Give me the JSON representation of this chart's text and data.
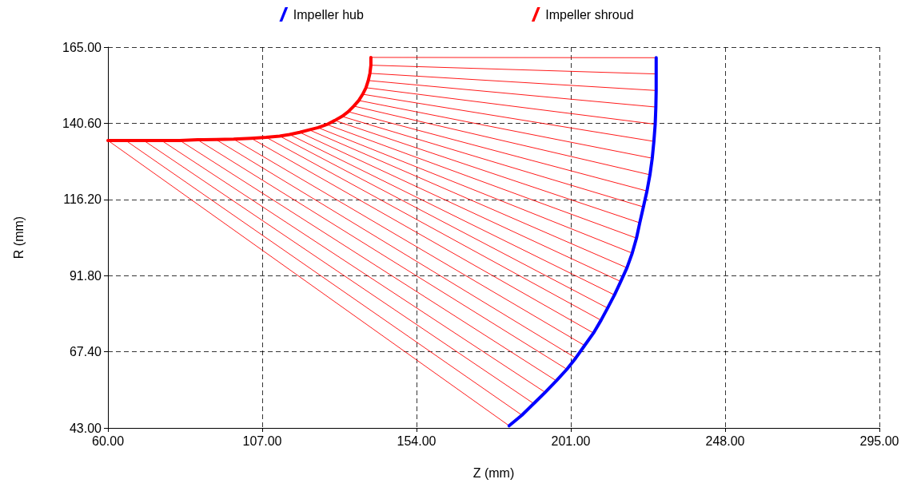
{
  "chart_data": {
    "type": "line",
    "xlabel": "Z (mm)",
    "ylabel": "R (mm)",
    "xlim": [
      60,
      295
    ],
    "ylim": [
      43,
      165
    ],
    "xticks": [
      {
        "value": 60,
        "label": "60.00"
      },
      {
        "value": 107,
        "label": "107.00"
      },
      {
        "value": 154,
        "label": "154.00"
      },
      {
        "value": 201,
        "label": "201.00"
      },
      {
        "value": 248,
        "label": "248.00"
      },
      {
        "value": 295,
        "label": "295.00"
      }
    ],
    "yticks": [
      {
        "value": 43,
        "label": "43.00"
      },
      {
        "value": 67.4,
        "label": "67.40"
      },
      {
        "value": 91.8,
        "label": "91.80"
      },
      {
        "value": 116.2,
        "label": "116.20"
      },
      {
        "value": 140.6,
        "label": "140.60"
      },
      {
        "value": 165,
        "label": "165.00"
      }
    ],
    "grid": true,
    "legend": "top",
    "marker": "none",
    "line_style": "solid",
    "series": [
      {
        "name": "Impeller hub",
        "color": "#0000ff",
        "x": [
          182.2,
          186.1,
          189.7,
          193.2,
          196.6,
          199.8,
          202.5,
          205.2,
          207.9,
          210.2,
          212.2,
          214.3,
          216.2,
          218.1,
          219.7,
          221.0,
          222.0,
          223.1,
          224.2,
          225.1,
          225.8,
          226.3,
          226.7,
          226.9,
          227.0,
          227.0,
          227.0
        ],
        "values": [
          43.7,
          47.1,
          50.8,
          54.4,
          58.1,
          61.8,
          65.4,
          69.4,
          73.4,
          77.5,
          81.4,
          85.6,
          89.9,
          94.3,
          99.0,
          103.8,
          108.7,
          113.8,
          118.9,
          124.1,
          129.4,
          134.8,
          140.3,
          145.8,
          151.1,
          156.4,
          161.6
        ]
      },
      {
        "name": "Impeller shroud",
        "color": "#ff0000",
        "x": [
          60.0,
          65.4,
          70.9,
          76.3,
          81.9,
          87.3,
          92.9,
          98.3,
          103.6,
          108.2,
          112.3,
          115.3,
          118.4,
          121.3,
          124.0,
          126.7,
          129.1,
          131.3,
          133.2,
          134.9,
          136.4,
          137.6,
          138.6,
          139.3,
          139.8,
          140.1,
          140.1
        ],
        "values": [
          135.1,
          135.1,
          135.1,
          135.1,
          135.1,
          135.3,
          135.4,
          135.5,
          135.8,
          136.1,
          136.5,
          137.0,
          137.7,
          138.5,
          139.2,
          140.2,
          141.5,
          142.8,
          144.3,
          146.1,
          147.9,
          149.9,
          152.0,
          154.3,
          156.6,
          159.2,
          161.7
        ]
      },
      {
        "color": "#ff0000",
        "x": [
          140.1,
          227.0
        ],
        "values": [
          161.7,
          161.6
        ]
      },
      {
        "color": "#ff0000",
        "x": [
          140.1,
          227.0
        ],
        "values": [
          159.2,
          156.4
        ]
      },
      {
        "color": "#ff0000",
        "x": [
          139.8,
          227.0
        ],
        "values": [
          156.6,
          151.1
        ]
      },
      {
        "color": "#ff0000",
        "x": [
          139.3,
          226.9
        ],
        "values": [
          154.3,
          145.8
        ]
      },
      {
        "color": "#ff0000",
        "x": [
          138.6,
          226.7
        ],
        "values": [
          152.0,
          140.3
        ]
      },
      {
        "color": "#ff0000",
        "x": [
          137.6,
          226.3
        ],
        "values": [
          149.9,
          134.8
        ]
      },
      {
        "color": "#ff0000",
        "x": [
          136.4,
          225.8
        ],
        "values": [
          147.9,
          129.4
        ]
      },
      {
        "color": "#ff0000",
        "x": [
          134.9,
          225.1
        ],
        "values": [
          146.1,
          124.1
        ]
      },
      {
        "color": "#ff0000",
        "x": [
          133.2,
          224.2
        ],
        "values": [
          144.3,
          118.9
        ]
      },
      {
        "color": "#ff0000",
        "x": [
          131.3,
          223.1
        ],
        "values": [
          142.8,
          113.8
        ]
      },
      {
        "color": "#ff0000",
        "x": [
          129.1,
          222.0
        ],
        "values": [
          141.5,
          108.7
        ]
      },
      {
        "color": "#ff0000",
        "x": [
          126.7,
          221.0
        ],
        "values": [
          140.2,
          103.8
        ]
      },
      {
        "color": "#ff0000",
        "x": [
          124.0,
          219.7
        ],
        "values": [
          139.2,
          99.0
        ]
      },
      {
        "color": "#ff0000",
        "x": [
          121.3,
          218.1
        ],
        "values": [
          138.5,
          94.3
        ]
      },
      {
        "color": "#ff0000",
        "x": [
          118.4,
          216.2
        ],
        "values": [
          137.7,
          89.9
        ]
      },
      {
        "color": "#ff0000",
        "x": [
          115.3,
          214.3
        ],
        "values": [
          137.0,
          85.6
        ]
      },
      {
        "color": "#ff0000",
        "x": [
          112.3,
          212.2
        ],
        "values": [
          136.5,
          81.4
        ]
      },
      {
        "color": "#ff0000",
        "x": [
          108.2,
          210.2
        ],
        "values": [
          136.1,
          77.5
        ]
      },
      {
        "color": "#ff0000",
        "x": [
          103.6,
          207.9
        ],
        "values": [
          135.8,
          73.4
        ]
      },
      {
        "color": "#ff0000",
        "x": [
          98.3,
          205.2
        ],
        "values": [
          135.5,
          69.4
        ]
      },
      {
        "color": "#ff0000",
        "x": [
          92.9,
          202.5
        ],
        "values": [
          135.4,
          65.4
        ]
      },
      {
        "color": "#ff0000",
        "x": [
          87.3,
          199.8
        ],
        "values": [
          135.3,
          61.8
        ]
      },
      {
        "color": "#ff0000",
        "x": [
          81.9,
          196.6
        ],
        "values": [
          135.1,
          58.1
        ]
      },
      {
        "color": "#ff0000",
        "x": [
          76.3,
          193.2
        ],
        "values": [
          135.1,
          54.4
        ]
      },
      {
        "color": "#ff0000",
        "x": [
          70.9,
          189.7
        ],
        "values": [
          135.1,
          50.8
        ]
      },
      {
        "color": "#ff0000",
        "x": [
          65.4,
          186.1
        ],
        "values": [
          135.1,
          47.1
        ]
      },
      {
        "color": "#ff0000",
        "x": [
          60.0,
          182.2
        ],
        "values": [
          135.1,
          43.7
        ]
      }
    ]
  }
}
